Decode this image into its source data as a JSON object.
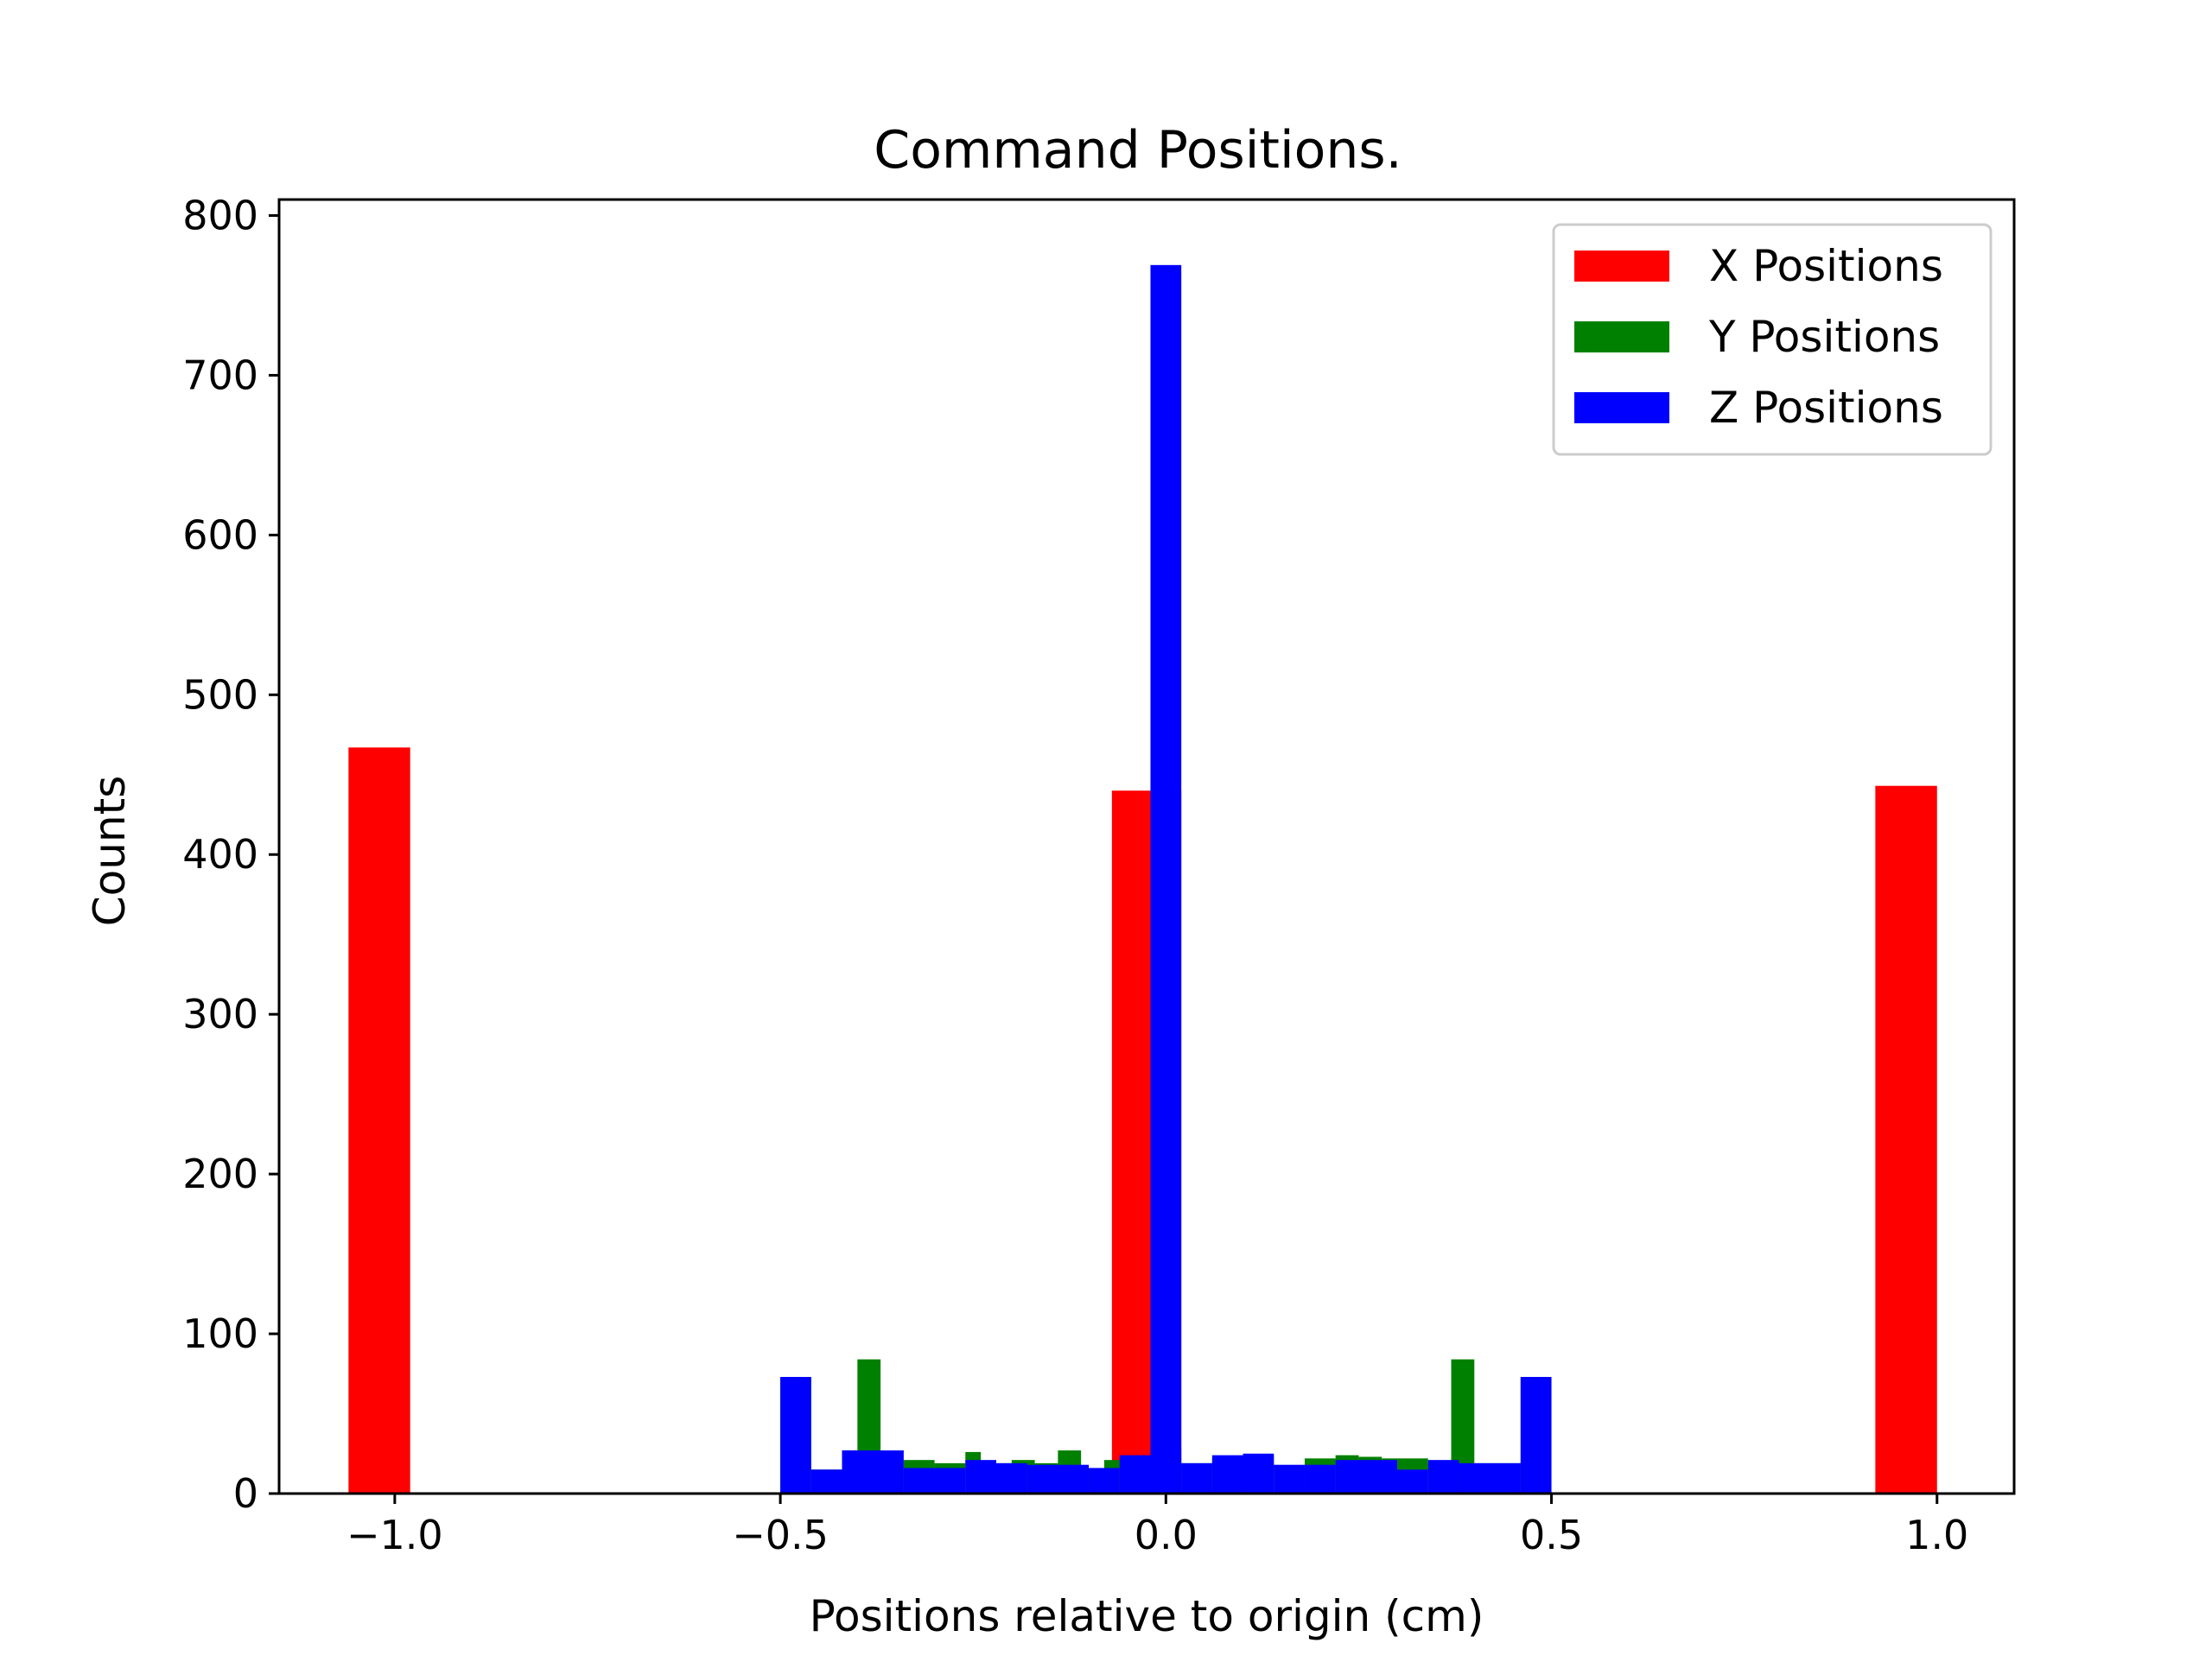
{
  "chart_data": {
    "type": "bar",
    "title": "Command Positions.",
    "xlabel": "Positions relative to origin (cm)",
    "ylabel": "Counts",
    "xlim": [
      -1.15,
      1.1
    ],
    "ylim": [
      0,
      810
    ],
    "xticks": [
      {
        "value": -1.0,
        "label": "−1.0"
      },
      {
        "value": -0.5,
        "label": "−0.5"
      },
      {
        "value": 0.0,
        "label": "0.0"
      },
      {
        "value": 0.5,
        "label": "0.5"
      },
      {
        "value": 1.0,
        "label": "1.0"
      }
    ],
    "yticks": [
      {
        "value": 0,
        "label": "0"
      },
      {
        "value": 100,
        "label": "100"
      },
      {
        "value": 200,
        "label": "200"
      },
      {
        "value": 300,
        "label": "300"
      },
      {
        "value": 400,
        "label": "400"
      },
      {
        "value": 500,
        "label": "500"
      },
      {
        "value": 600,
        "label": "600"
      },
      {
        "value": 700,
        "label": "700"
      },
      {
        "value": 800,
        "label": "800"
      }
    ],
    "grid": false,
    "legend_position": "top-right",
    "series": [
      {
        "name": "X Positions",
        "color": "#ff0000",
        "bins": [
          {
            "x0": -1.06,
            "x1": -0.98,
            "value": 467
          },
          {
            "x0": -0.07,
            "x1": 0.02,
            "value": 440
          },
          {
            "x0": 0.92,
            "x1": 1.0,
            "value": 443
          }
        ]
      },
      {
        "name": "Y Positions",
        "color": "#008000",
        "bins": [
          {
            "x0": -0.5,
            "x1": -0.46,
            "value": 73
          },
          {
            "x0": -0.46,
            "x1": -0.42,
            "value": 15
          },
          {
            "x0": -0.42,
            "x1": -0.4,
            "value": 27
          },
          {
            "x0": -0.4,
            "x1": -0.37,
            "value": 84
          },
          {
            "x0": -0.37,
            "x1": -0.34,
            "value": 15
          },
          {
            "x0": -0.34,
            "x1": -0.3,
            "value": 21
          },
          {
            "x0": -0.3,
            "x1": -0.26,
            "value": 19
          },
          {
            "x0": -0.26,
            "x1": -0.24,
            "value": 26
          },
          {
            "x0": -0.24,
            "x1": -0.2,
            "value": 19
          },
          {
            "x0": -0.2,
            "x1": -0.17,
            "value": 21
          },
          {
            "x0": -0.17,
            "x1": -0.14,
            "value": 19
          },
          {
            "x0": -0.14,
            "x1": -0.11,
            "value": 27
          },
          {
            "x0": -0.11,
            "x1": -0.08,
            "value": 15
          },
          {
            "x0": -0.08,
            "x1": -0.06,
            "value": 21
          },
          {
            "x0": -0.06,
            "x1": -0.02,
            "value": 22
          },
          {
            "x0": -0.02,
            "x1": 0.02,
            "value": 28
          },
          {
            "x0": 0.02,
            "x1": 0.06,
            "value": 19
          },
          {
            "x0": 0.06,
            "x1": 0.1,
            "value": 22
          },
          {
            "x0": 0.1,
            "x1": 0.14,
            "value": 24
          },
          {
            "x0": 0.14,
            "x1": 0.18,
            "value": 17
          },
          {
            "x0": 0.18,
            "x1": 0.22,
            "value": 22
          },
          {
            "x0": 0.22,
            "x1": 0.25,
            "value": 24
          },
          {
            "x0": 0.25,
            "x1": 0.28,
            "value": 23
          },
          {
            "x0": 0.28,
            "x1": 0.3,
            "value": 22
          },
          {
            "x0": 0.3,
            "x1": 0.34,
            "value": 22
          },
          {
            "x0": 0.34,
            "x1": 0.37,
            "value": 19
          },
          {
            "x0": 0.37,
            "x1": 0.4,
            "value": 84
          },
          {
            "x0": 0.4,
            "x1": 0.46,
            "value": 19
          },
          {
            "x0": 0.46,
            "x1": 0.5,
            "value": 73
          }
        ]
      },
      {
        "name": "Z Positions",
        "color": "#0000ff",
        "bins": [
          {
            "x0": -0.5,
            "x1": -0.46,
            "value": 73
          },
          {
            "x0": -0.46,
            "x1": -0.42,
            "value": 15
          },
          {
            "x0": -0.42,
            "x1": -0.34,
            "value": 27
          },
          {
            "x0": -0.34,
            "x1": -0.26,
            "value": 16
          },
          {
            "x0": -0.26,
            "x1": -0.22,
            "value": 21
          },
          {
            "x0": -0.22,
            "x1": -0.18,
            "value": 19
          },
          {
            "x0": -0.18,
            "x1": -0.1,
            "value": 18
          },
          {
            "x0": -0.1,
            "x1": -0.06,
            "value": 16
          },
          {
            "x0": -0.06,
            "x1": -0.02,
            "value": 24
          },
          {
            "x0": -0.02,
            "x1": 0.02,
            "value": 769
          },
          {
            "x0": 0.02,
            "x1": 0.06,
            "value": 19
          },
          {
            "x0": 0.06,
            "x1": 0.1,
            "value": 24
          },
          {
            "x0": 0.1,
            "x1": 0.14,
            "value": 25
          },
          {
            "x0": 0.14,
            "x1": 0.18,
            "value": 18
          },
          {
            "x0": 0.18,
            "x1": 0.22,
            "value": 18
          },
          {
            "x0": 0.22,
            "x1": 0.3,
            "value": 21
          },
          {
            "x0": 0.3,
            "x1": 0.34,
            "value": 15
          },
          {
            "x0": 0.34,
            "x1": 0.38,
            "value": 21
          },
          {
            "x0": 0.38,
            "x1": 0.46,
            "value": 19
          },
          {
            "x0": 0.46,
            "x1": 0.5,
            "value": 73
          }
        ]
      }
    ]
  }
}
